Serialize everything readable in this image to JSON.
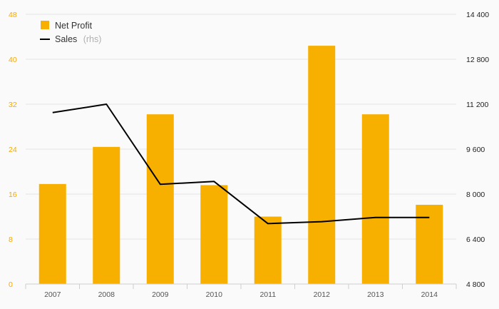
{
  "chart_data": {
    "type": "bar+line",
    "categories": [
      "2007",
      "2008",
      "2009",
      "2010",
      "2011",
      "2012",
      "2013",
      "2014"
    ],
    "series": [
      {
        "name": "Net Profit",
        "type": "bar",
        "axis": "left",
        "color": "#f8b000",
        "values": [
          17.8,
          24.4,
          30.2,
          17.6,
          12.0,
          42.4,
          30.2,
          14.1
        ]
      },
      {
        "name": "Sales",
        "name_note": "(rhs)",
        "type": "line",
        "axis": "right",
        "color": "#000000",
        "values": [
          10900,
          11200,
          8350,
          8450,
          6950,
          7020,
          7170,
          7170
        ]
      }
    ],
    "left_axis": {
      "min": 0,
      "max": 48,
      "ticks": [
        0,
        8,
        16,
        24,
        32,
        40,
        48
      ],
      "tick_labels": [
        "0",
        "8",
        "16",
        "24",
        "32",
        "40",
        "48"
      ],
      "label_color": "#f5a800"
    },
    "right_axis": {
      "min": 4800,
      "max": 14400,
      "ticks": [
        4800,
        6400,
        8000,
        9600,
        11200,
        12800,
        14400
      ],
      "tick_labels": [
        "4 800",
        "6 400",
        "8 000",
        "9 600",
        "11 200",
        "12 800",
        "14 400"
      ],
      "label_color": "#222222"
    },
    "grid": true,
    "legend": {
      "position": "top-left"
    },
    "title": "",
    "xlabel": "",
    "ylabel": ""
  }
}
